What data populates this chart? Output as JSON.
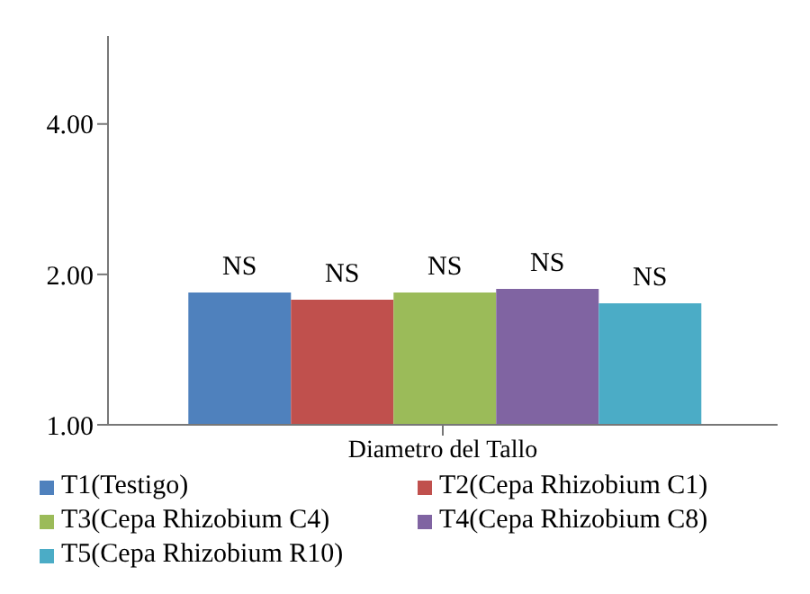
{
  "chart_data": {
    "type": "bar",
    "categories": [
      "Diametro del Tallo"
    ],
    "series": [
      {
        "name": "T1(Testigo)",
        "color": "#4f81bd",
        "values": [
          1.84
        ],
        "value_labels": [
          "NS"
        ]
      },
      {
        "name": "T2(Cepa Rhizobium C1)",
        "color": "#c0504d",
        "values": [
          1.78
        ],
        "value_labels": [
          "NS"
        ]
      },
      {
        "name": "T3(Cepa Rhizobium C4)",
        "color": "#9bbb59",
        "values": [
          1.84
        ],
        "value_labels": [
          "NS"
        ]
      },
      {
        "name": "T4(Cepa Rhizobium C8)",
        "color": "#8064a2",
        "values": [
          1.87
        ],
        "value_labels": [
          "NS"
        ]
      },
      {
        "name": "T5(Cepa Rhizobium R10)",
        "color": "#4bacc6",
        "values": [
          1.75
        ],
        "value_labels": [
          "NS"
        ]
      }
    ],
    "ylim": [
      1,
      6
    ],
    "yticks": [
      {
        "value": 1,
        "label": "1.00"
      },
      {
        "value": 2,
        "label": "2.00"
      },
      {
        "value": 4,
        "label": "4.00"
      }
    ],
    "log": "y",
    "grid": false,
    "legend": "bottom"
  }
}
